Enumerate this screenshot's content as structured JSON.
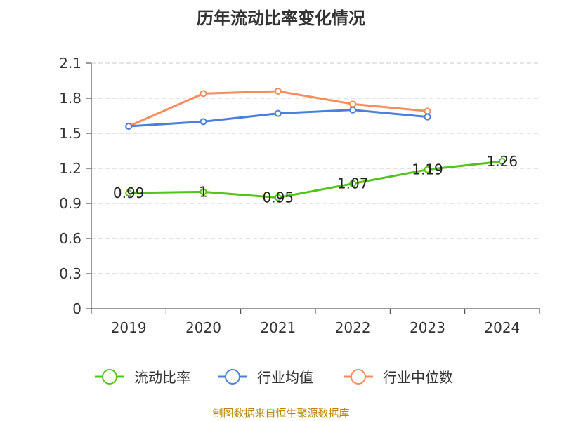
{
  "chart_data": {
    "type": "line",
    "title": "历年流动比率变化情况",
    "categories": [
      "2019",
      "2020",
      "2021",
      "2022",
      "2023",
      "2024"
    ],
    "ylim": [
      0,
      2.1
    ],
    "yticks": [
      0,
      0.3,
      0.6,
      0.9,
      1.2,
      1.5,
      1.8,
      2.1
    ],
    "ytick_labels": [
      "0",
      "0.3",
      "0.6",
      "0.9",
      "1.2",
      "1.5",
      "1.8",
      "2.1"
    ],
    "grid": "horizontal dashed",
    "legend": "bottom",
    "series": [
      {
        "name": "流动比率",
        "color": "#52c41a",
        "values": [
          0.99,
          1.0,
          0.95,
          1.07,
          1.19,
          1.26
        ],
        "labels": [
          "0.99",
          "1",
          "0.95",
          "1.07",
          "1.19",
          "1.26"
        ]
      },
      {
        "name": "行业均值",
        "color": "#4a7fdb",
        "values": [
          1.56,
          1.6,
          1.67,
          1.7,
          1.64,
          null
        ]
      },
      {
        "name": "行业中位数",
        "color": "#f78d5b",
        "values": [
          1.56,
          1.84,
          1.86,
          1.75,
          1.69,
          null
        ]
      }
    ]
  },
  "footer": {
    "source": "制图数据来自恒生聚源数据库"
  }
}
